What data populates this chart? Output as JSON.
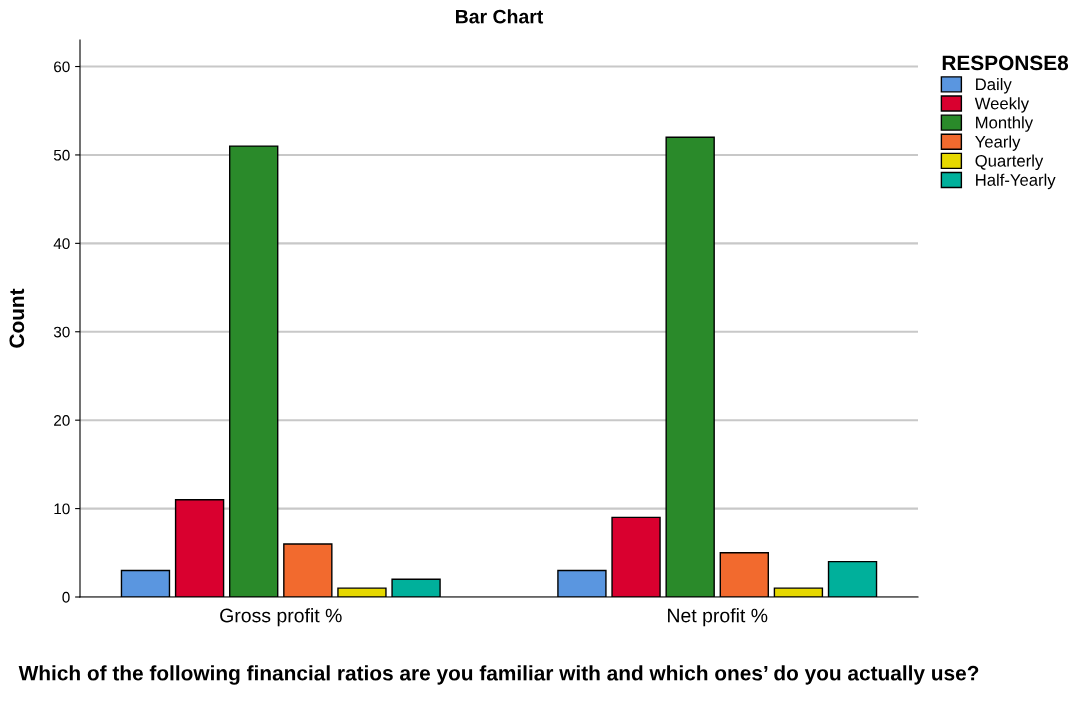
{
  "chart_data": {
    "type": "bar",
    "title": "Bar Chart",
    "xlabel": "Which of the following financial ratios are you familiar with and which ones’ do you actually use?",
    "ylabel": "Count",
    "legend_title": "RESPONSE8",
    "categories": [
      "Gross profit %",
      "Net profit %"
    ],
    "series": [
      {
        "name": "Daily",
        "color": "#5a96e0",
        "values": [
          3,
          3
        ]
      },
      {
        "name": "Weekly",
        "color": "#d9002f",
        "values": [
          11,
          9
        ]
      },
      {
        "name": "Monthly",
        "color": "#2a8a2a",
        "values": [
          51,
          52
        ]
      },
      {
        "name": "Yearly",
        "color": "#f26a2e",
        "values": [
          6,
          5
        ]
      },
      {
        "name": "Quarterly",
        "color": "#e6d800",
        "values": [
          1,
          1
        ]
      },
      {
        "name": "Half-Yearly",
        "color": "#00b09b",
        "values": [
          2,
          4
        ]
      }
    ],
    "ylim": [
      0,
      63
    ],
    "yticks": [
      0,
      10,
      20,
      30,
      40,
      50,
      60
    ],
    "grid": "y",
    "legend": "top right"
  }
}
